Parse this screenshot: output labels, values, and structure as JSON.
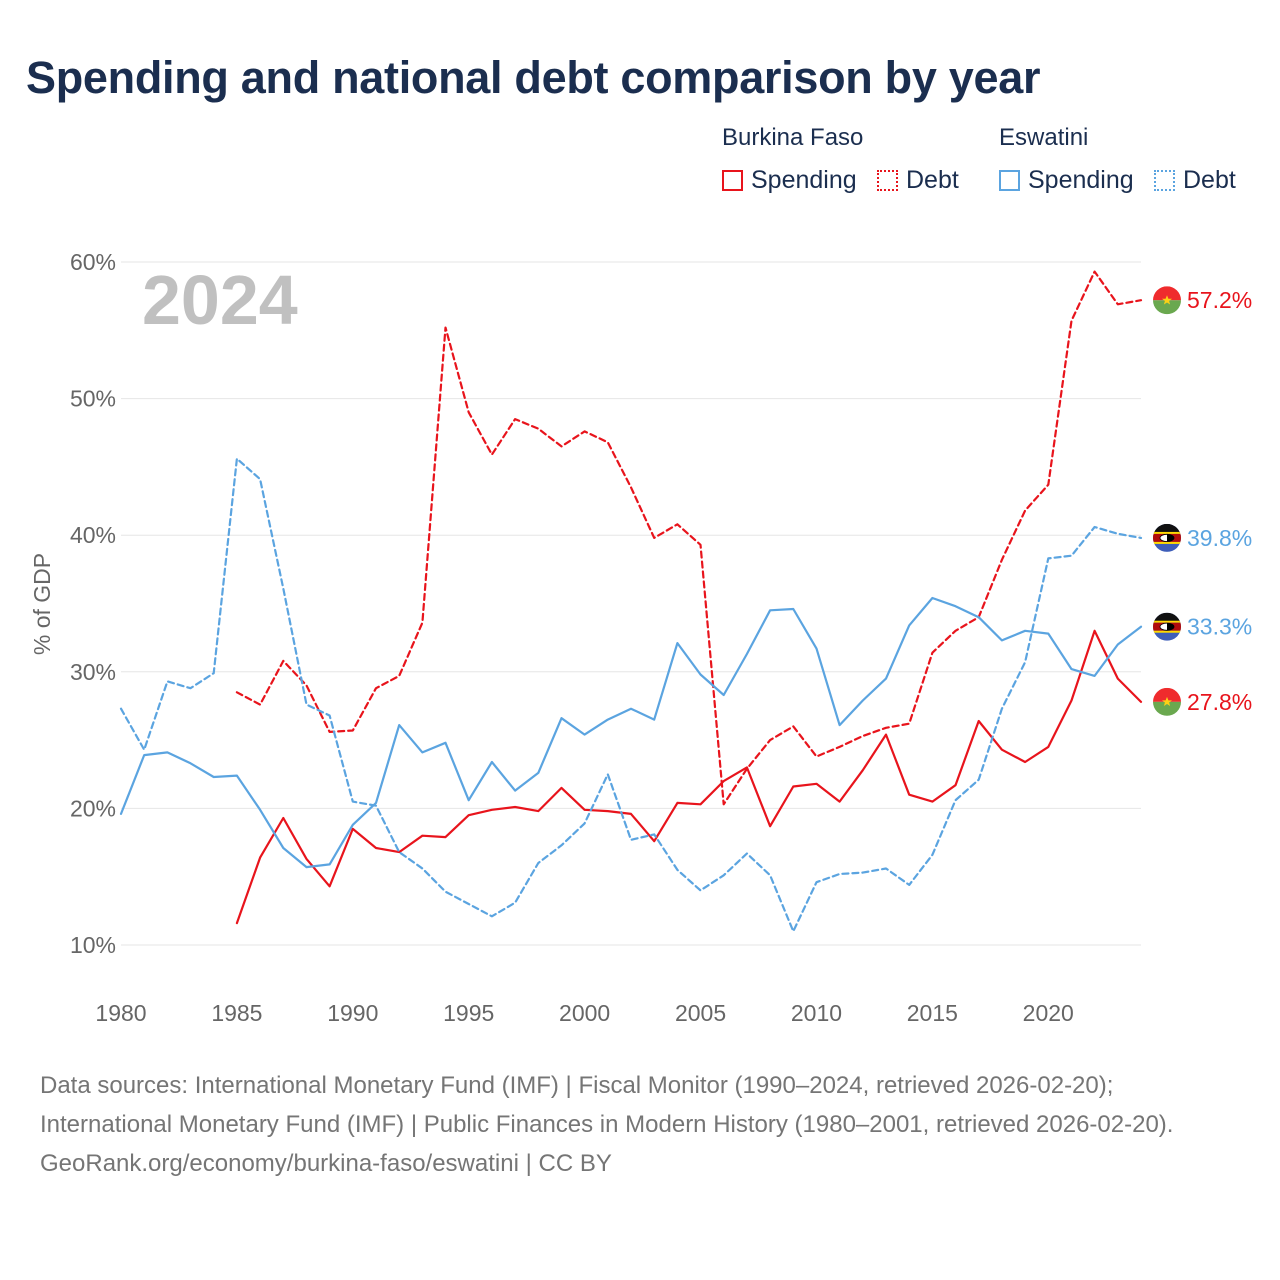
{
  "title": "Spending and national debt comparison by year",
  "legend": {
    "groups": [
      {
        "name": "Burkina Faso",
        "color": "#e8141c",
        "items": [
          {
            "label": "Spending",
            "style": "solid"
          },
          {
            "label": "Debt",
            "style": "dotted"
          }
        ]
      },
      {
        "name": "Eswatini",
        "color": "#5ba4e0",
        "items": [
          {
            "label": "Spending",
            "style": "solid"
          },
          {
            "label": "Debt",
            "style": "dotted"
          }
        ]
      }
    ]
  },
  "footer": {
    "sources": "Data sources: International Monetary Fund (IMF) | Fiscal Monitor (1990–2024, retrieved 2026-02-20); International Monetary Fund (IMF) | Public Finances in Modern History (1980–2001, retrieved 2026-02-20).",
    "credit": "GeoRank.org/economy/burkina-faso/eswatini | CC BY"
  },
  "chart_data": {
    "type": "line",
    "year_label": "2024",
    "ylabel": "% of GDP",
    "xlabel": "",
    "xlim": [
      1980,
      2024
    ],
    "ylim": [
      10,
      60
    ],
    "x_ticks": [
      1980,
      1985,
      1990,
      1995,
      2000,
      2005,
      2010,
      2015,
      2020
    ],
    "y_ticks": [
      10,
      20,
      30,
      40,
      50,
      60
    ],
    "y_tick_labels": [
      "10%",
      "20%",
      "30%",
      "40%",
      "50%",
      "60%"
    ],
    "grid": true,
    "series": [
      {
        "name": "Burkina Faso Spending",
        "country": "Burkina Faso",
        "measure": "Spending",
        "color": "#e8141c",
        "dash": "solid",
        "end_label": "27.8%",
        "flag": "burkina-faso-flag-icon",
        "x": [
          1985,
          1986,
          1987,
          1988,
          1989,
          1990,
          1991,
          1992,
          1993,
          1994,
          1995,
          1996,
          1997,
          1998,
          1999,
          2000,
          2001,
          2002,
          2003,
          2004,
          2005,
          2006,
          2007,
          2008,
          2009,
          2010,
          2011,
          2012,
          2013,
          2014,
          2015,
          2016,
          2017,
          2018,
          2019,
          2020,
          2021,
          2022,
          2023,
          2024
        ],
        "values": [
          11.6,
          16.4,
          19.3,
          16.3,
          14.3,
          18.5,
          17.1,
          16.8,
          18.0,
          17.9,
          19.5,
          19.9,
          20.1,
          19.8,
          21.5,
          19.9,
          19.8,
          19.6,
          17.6,
          20.4,
          20.3,
          22.0,
          23.0,
          18.7,
          21.6,
          21.8,
          20.5,
          22.8,
          25.4,
          21.0,
          20.5,
          21.7,
          26.4,
          24.3,
          23.4,
          24.5,
          27.9,
          33.0,
          29.5,
          27.8
        ]
      },
      {
        "name": "Burkina Faso Debt",
        "country": "Burkina Faso",
        "measure": "Debt",
        "color": "#e8141c",
        "dash": "dashed",
        "end_label": "57.2%",
        "flag": "burkina-faso-flag-icon",
        "x": [
          1985,
          1986,
          1987,
          1988,
          1989,
          1990,
          1991,
          1992,
          1993,
          1994,
          1995,
          1996,
          1997,
          1998,
          1999,
          2000,
          2001,
          2002,
          2003,
          2004,
          2005,
          2006,
          2007,
          2008,
          2009,
          2010,
          2011,
          2012,
          2013,
          2014,
          2015,
          2016,
          2017,
          2018,
          2019,
          2020,
          2021,
          2022,
          2023,
          2024
        ],
        "values": [
          28.5,
          27.6,
          30.8,
          29.0,
          25.6,
          25.7,
          28.8,
          29.7,
          33.6,
          55.2,
          49.0,
          45.9,
          48.5,
          47.8,
          46.5,
          47.6,
          46.8,
          43.5,
          39.8,
          40.8,
          39.3,
          20.3,
          22.9,
          25.0,
          26.0,
          23.8,
          24.5,
          25.3,
          25.9,
          26.2,
          31.4,
          33.0,
          34.0,
          38.2,
          41.8,
          43.7,
          55.7,
          59.3,
          56.9,
          57.2
        ]
      },
      {
        "name": "Eswatini Spending",
        "country": "Eswatini",
        "measure": "Spending",
        "color": "#5ba4e0",
        "dash": "solid",
        "end_label": "33.3%",
        "flag": "eswatini-flag-icon",
        "x": [
          1980,
          1981,
          1982,
          1983,
          1984,
          1985,
          1986,
          1987,
          1988,
          1989,
          1990,
          1991,
          1992,
          1993,
          1994,
          1995,
          1996,
          1997,
          1998,
          1999,
          2000,
          2001,
          2002,
          2003,
          2004,
          2005,
          2006,
          2007,
          2008,
          2009,
          2010,
          2011,
          2012,
          2013,
          2014,
          2015,
          2016,
          2017,
          2018,
          2019,
          2020,
          2021,
          2022,
          2023,
          2024
        ],
        "values": [
          19.6,
          23.9,
          24.1,
          23.3,
          22.3,
          22.4,
          19.9,
          17.1,
          15.7,
          15.9,
          18.8,
          20.4,
          26.1,
          24.1,
          24.8,
          20.6,
          23.4,
          21.3,
          22.6,
          26.6,
          25.4,
          26.5,
          27.3,
          26.5,
          32.1,
          29.8,
          28.3,
          31.3,
          34.5,
          34.6,
          31.7,
          26.1,
          27.9,
          29.5,
          33.4,
          35.4,
          34.8,
          34.0,
          32.3,
          33.0,
          32.8,
          30.2,
          29.7,
          32.0,
          33.3
        ]
      },
      {
        "name": "Eswatini Debt",
        "country": "Eswatini",
        "measure": "Debt",
        "color": "#5ba4e0",
        "dash": "dashed",
        "end_label": "39.8%",
        "flag": "eswatini-flag-icon",
        "x": [
          1980,
          1981,
          1982,
          1983,
          1984,
          1985,
          1986,
          1987,
          1988,
          1989,
          1990,
          1991,
          1992,
          1993,
          1994,
          1995,
          1996,
          1997,
          1998,
          1999,
          2000,
          2001,
          2002,
          2003,
          2004,
          2005,
          2006,
          2007,
          2008,
          2009,
          2010,
          2011,
          2012,
          2013,
          2014,
          2015,
          2016,
          2017,
          2018,
          2019,
          2020,
          2021,
          2022,
          2023,
          2024
        ],
        "values": [
          27.3,
          24.3,
          29.3,
          28.8,
          29.9,
          45.6,
          44.1,
          36.1,
          27.6,
          26.8,
          20.5,
          20.2,
          16.8,
          15.6,
          13.9,
          13.0,
          12.1,
          13.1,
          16.0,
          17.3,
          18.9,
          22.5,
          17.7,
          18.1,
          15.5,
          14.0,
          15.1,
          16.7,
          15.1,
          11.0,
          14.6,
          15.2,
          15.3,
          15.6,
          14.4,
          16.6,
          20.6,
          22.1,
          27.3,
          30.7,
          38.3,
          38.5,
          40.6,
          40.1,
          39.8
        ]
      }
    ]
  }
}
